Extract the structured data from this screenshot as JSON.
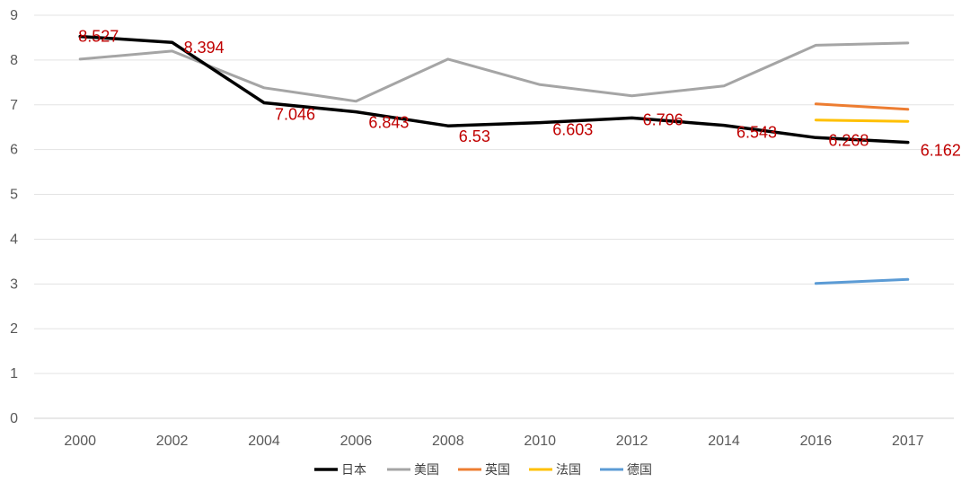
{
  "chart_data": {
    "type": "line",
    "title": "",
    "xlabel": "",
    "ylabel": "",
    "categories": [
      "2000",
      "2002",
      "2004",
      "2006",
      "2008",
      "2010",
      "2012",
      "2014",
      "2016",
      "2017"
    ],
    "ylim": [
      0,
      9
    ],
    "yticks": [
      "0",
      "1",
      "2",
      "3",
      "4",
      "5",
      "6",
      "7",
      "8",
      "9"
    ],
    "grid": true,
    "legend_position": "bottom",
    "series": [
      {
        "name": "日本",
        "color": "#000000",
        "values": [
          8.527,
          8.394,
          7.046,
          6.843,
          6.53,
          6.603,
          6.706,
          6.543,
          6.268,
          6.162
        ],
        "labels": [
          "8.527",
          "8.394",
          "7.046",
          "6.843",
          "6.53",
          "6.603",
          "6.706",
          "6.543",
          "6.268",
          "6.162"
        ]
      },
      {
        "name": "美国",
        "color": "#a5a5a5",
        "values": [
          8.02,
          8.2,
          7.38,
          7.08,
          8.02,
          7.45,
          7.2,
          7.42,
          8.33,
          8.38
        ]
      },
      {
        "name": "英国",
        "color": "#ed7d31",
        "values": [
          null,
          null,
          null,
          null,
          null,
          null,
          null,
          null,
          7.02,
          6.9
        ]
      },
      {
        "name": "法国",
        "color": "#ffc000",
        "values": [
          null,
          null,
          null,
          null,
          null,
          null,
          null,
          null,
          6.66,
          6.63
        ]
      },
      {
        "name": "德国",
        "color": "#5b9bd5",
        "values": [
          null,
          null,
          null,
          null,
          null,
          null,
          null,
          null,
          3.01,
          3.1
        ]
      }
    ]
  }
}
